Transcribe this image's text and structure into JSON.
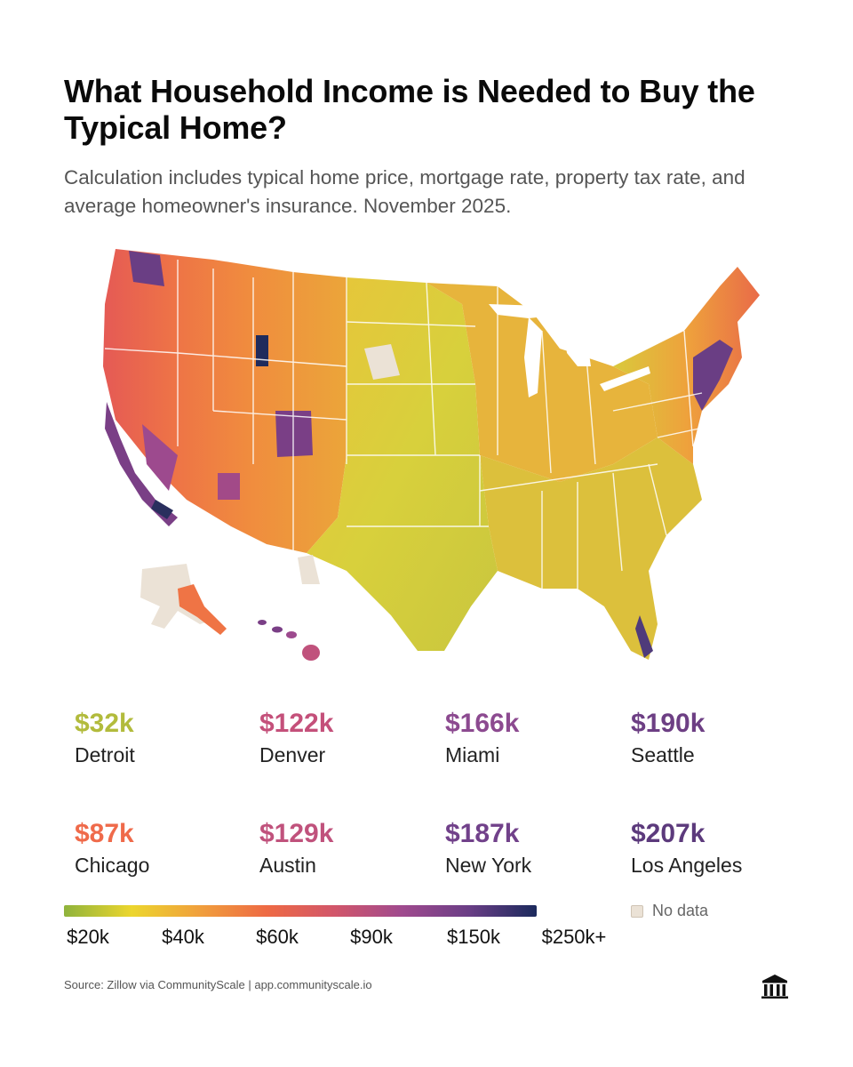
{
  "title": "What Household Income is Needed to Buy the Typical Home?",
  "subtitle": "Calculation includes typical home price, mortgage rate, property tax rate, and average homeowner's insurance. November 2025.",
  "cities": [
    {
      "value": "$32k",
      "name": "Detroit",
      "color": "#b2bb3c"
    },
    {
      "value": "$122k",
      "name": "Denver",
      "color": "#c4507a"
    },
    {
      "value": "$166k",
      "name": "Miami",
      "color": "#8c4a90"
    },
    {
      "value": "$190k",
      "name": "Seattle",
      "color": "#6d3f84"
    },
    {
      "value": "$87k",
      "name": "Chicago",
      "color": "#ef6a4a"
    },
    {
      "value": "$129k",
      "name": "Austin",
      "color": "#c0527c"
    },
    {
      "value": "$187k",
      "name": "New York",
      "color": "#71418a"
    },
    {
      "value": "$207k",
      "name": "Los Angeles",
      "color": "#5c3a7c"
    }
  ],
  "legend": {
    "ticks": [
      "$20k",
      "$40k",
      "$60k",
      "$90k",
      "$150k",
      "$250k+"
    ],
    "gradient": [
      "#8fb33c",
      "#ecd62e",
      "#f0a03c",
      "#ee6a44",
      "#d2566a",
      "#a04a8e",
      "#6a3e86",
      "#1b2a5c"
    ],
    "no_data_label": "No data",
    "no_data_color": "#ebe2d6"
  },
  "source": "Source: Zillow via CommunityScale | app.communityscale.io",
  "logo_icon": "communityscale-building-icon"
}
